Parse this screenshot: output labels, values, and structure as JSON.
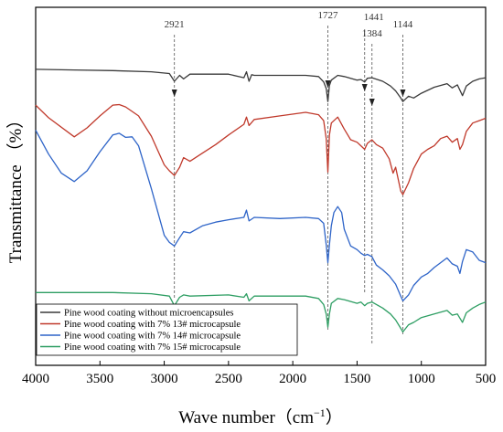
{
  "chart_data": {
    "type": "line",
    "xlabel": "Wave number（cm",
    "xlabel_sup": "−1",
    "xlabel_end": "）",
    "ylabel": "Transmittance （%）",
    "xlim": [
      4000,
      500
    ],
    "x_ticks": [
      4000,
      3500,
      3000,
      2500,
      2000,
      1500,
      1000,
      500
    ],
    "y_ticks_shown": false,
    "grid": false,
    "legend_position": "bottom-left",
    "annotations": [
      {
        "x": 2921,
        "label": "2921"
      },
      {
        "x": 1727,
        "label": "1727"
      },
      {
        "x": 1441,
        "label": "1441"
      },
      {
        "x": 1384,
        "label": "1384"
      },
      {
        "x": 1144,
        "label": "1144"
      }
    ],
    "series": [
      {
        "name": "Pine wood coating without microencapsules",
        "color": "#3a3a3a",
        "x": [
          4000,
          3700,
          3400,
          3100,
          2960,
          2921,
          2880,
          2850,
          2800,
          2500,
          2380,
          2360,
          2340,
          2320,
          2300,
          2100,
          1900,
          1800,
          1760,
          1740,
          1727,
          1715,
          1700,
          1650,
          1600,
          1500,
          1470,
          1441,
          1420,
          1384,
          1300,
          1240,
          1200,
          1160,
          1144,
          1100,
          1060,
          1000,
          900,
          800,
          760,
          720,
          680,
          650,
          600,
          550,
          500
        ],
        "y": [
          49.6,
          49.5,
          49.4,
          49.2,
          48.9,
          47.6,
          48.6,
          48.0,
          48.8,
          48.8,
          48.2,
          49.2,
          47.6,
          48.7,
          48.6,
          48.6,
          48.6,
          48.4,
          47.5,
          46.4,
          44.2,
          46.9,
          47.8,
          48.6,
          48.4,
          47.8,
          47.9,
          47.5,
          48.1,
          48.2,
          47.6,
          46.8,
          46.0,
          44.8,
          44.2,
          45.1,
          44.8,
          45.6,
          46.6,
          47.2,
          46.5,
          47.0,
          45.2,
          46.8,
          47.6,
          48.0,
          48.2
        ]
      },
      {
        "name": "Pine wood coating with 7% 13# microcapsule",
        "color": "#c0392b",
        "x": [
          4000,
          3900,
          3700,
          3600,
          3500,
          3400,
          3350,
          3300,
          3200,
          3100,
          3000,
          2960,
          2921,
          2880,
          2850,
          2800,
          2700,
          2600,
          2500,
          2380,
          2360,
          2340,
          2300,
          2100,
          1900,
          1800,
          1760,
          1740,
          1727,
          1715,
          1700,
          1650,
          1600,
          1550,
          1500,
          1470,
          1441,
          1420,
          1384,
          1350,
          1300,
          1250,
          1220,
          1200,
          1160,
          1144,
          1100,
          1060,
          1000,
          950,
          900,
          850,
          800,
          760,
          720,
          700,
          680,
          650,
          600,
          550,
          500
        ],
        "y": [
          43.6,
          41.5,
          38.3,
          39.8,
          41.8,
          43.6,
          43.7,
          43.3,
          41.8,
          38.4,
          33.6,
          32.6,
          31.8,
          33.2,
          34.8,
          34.2,
          35.6,
          37.0,
          38.6,
          40.4,
          41.6,
          40.2,
          41.2,
          41.8,
          42.4,
          42.0,
          41.0,
          38.0,
          32.4,
          38.6,
          40.6,
          41.6,
          39.6,
          37.8,
          37.4,
          36.8,
          36.2,
          37.2,
          37.8,
          37.0,
          36.4,
          34.6,
          32.2,
          33.2,
          29.2,
          28.6,
          30.6,
          33.0,
          35.4,
          36.2,
          36.8,
          38.0,
          38.4,
          37.4,
          38.0,
          36.2,
          37.0,
          39.2,
          40.6,
          41.0,
          41.4
        ]
      },
      {
        "name": "Pine wood coating with 7% 14# microcapsule",
        "color": "#2e64c8",
        "x": [
          4000,
          3900,
          3800,
          3700,
          3600,
          3500,
          3400,
          3350,
          3300,
          3250,
          3200,
          3100,
          3000,
          2960,
          2921,
          2880,
          2850,
          2800,
          2700,
          2600,
          2500,
          2380,
          2360,
          2340,
          2300,
          2100,
          1900,
          1800,
          1760,
          1740,
          1727,
          1715,
          1700,
          1680,
          1650,
          1620,
          1600,
          1550,
          1500,
          1470,
          1441,
          1420,
          1384,
          1350,
          1300,
          1250,
          1200,
          1160,
          1144,
          1100,
          1060,
          1000,
          950,
          900,
          850,
          800,
          760,
          720,
          700,
          680,
          650,
          600,
          550,
          500
        ],
        "y": [
          39.4,
          35.4,
          32.2,
          30.8,
          32.6,
          35.8,
          38.6,
          38.9,
          38.2,
          38.3,
          36.8,
          29.6,
          21.8,
          20.6,
          20.0,
          21.4,
          22.4,
          22.2,
          23.4,
          24.0,
          24.4,
          24.8,
          26.0,
          24.2,
          24.8,
          24.6,
          24.8,
          24.6,
          23.8,
          20.2,
          17.2,
          20.2,
          23.4,
          25.6,
          26.6,
          25.6,
          22.8,
          20.0,
          19.4,
          18.8,
          18.4,
          18.6,
          18.2,
          16.8,
          16.0,
          15.0,
          13.6,
          11.6,
          10.8,
          11.8,
          13.4,
          14.8,
          15.4,
          16.4,
          17.2,
          18.0,
          17.0,
          16.6,
          15.4,
          17.4,
          19.4,
          19.0,
          17.6,
          17.2
        ]
      },
      {
        "name": "Pine wood coating with 7% 15# microcapsule",
        "color": "#2e9e63",
        "x": [
          4000,
          3700,
          3400,
          3100,
          2960,
          2921,
          2880,
          2850,
          2800,
          2500,
          2380,
          2360,
          2340,
          2300,
          2100,
          1900,
          1800,
          1760,
          1740,
          1727,
          1715,
          1700,
          1650,
          1600,
          1500,
          1470,
          1441,
          1420,
          1384,
          1300,
          1240,
          1200,
          1160,
          1144,
          1100,
          1060,
          1000,
          900,
          800,
          760,
          720,
          680,
          650,
          600,
          550,
          500
        ],
        "y": [
          12.2,
          12.2,
          12.2,
          12.0,
          11.6,
          10.0,
          11.4,
          11.8,
          11.6,
          11.8,
          11.4,
          12.0,
          10.8,
          11.6,
          11.6,
          11.6,
          11.2,
          10.2,
          8.6,
          6.4,
          8.6,
          10.4,
          11.2,
          11.0,
          10.4,
          10.6,
          10.0,
          10.4,
          10.6,
          9.6,
          8.6,
          7.6,
          6.2,
          5.6,
          6.8,
          7.2,
          8.0,
          8.6,
          9.2,
          8.4,
          8.6,
          7.2,
          8.8,
          9.6,
          10.2,
          10.6
        ]
      }
    ]
  }
}
